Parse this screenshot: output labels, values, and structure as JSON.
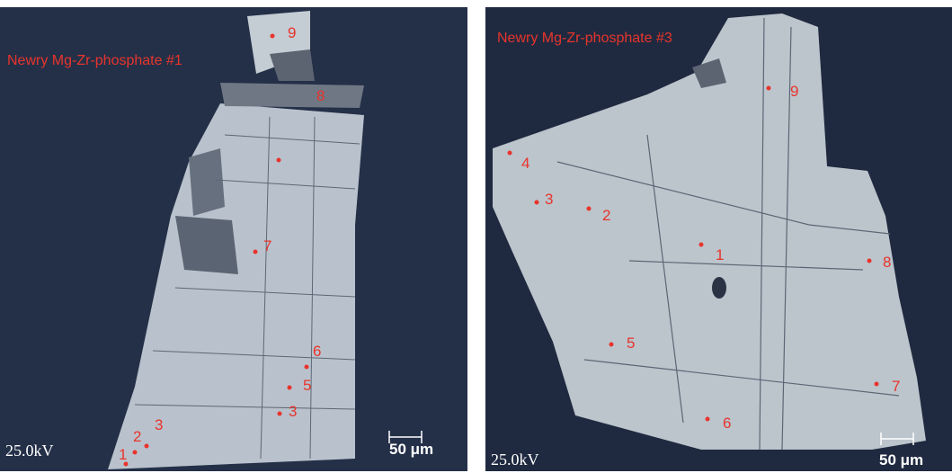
{
  "panels": [
    {
      "title": "Newry Mg-Zr-phosphate #1",
      "voltage": "25.0kV",
      "scale_bar": "50 μm",
      "spots": [
        "9",
        "8",
        "7",
        "6",
        "5",
        "3",
        "3",
        "2",
        "1"
      ]
    },
    {
      "title": "Newry Mg-Zr-phosphate #3",
      "voltage": "25.0kV",
      "scale_bar": "50 μm",
      "spots": [
        "4",
        "3",
        "2",
        "1",
        "9",
        "8",
        "5",
        "6",
        "7"
      ]
    }
  ]
}
